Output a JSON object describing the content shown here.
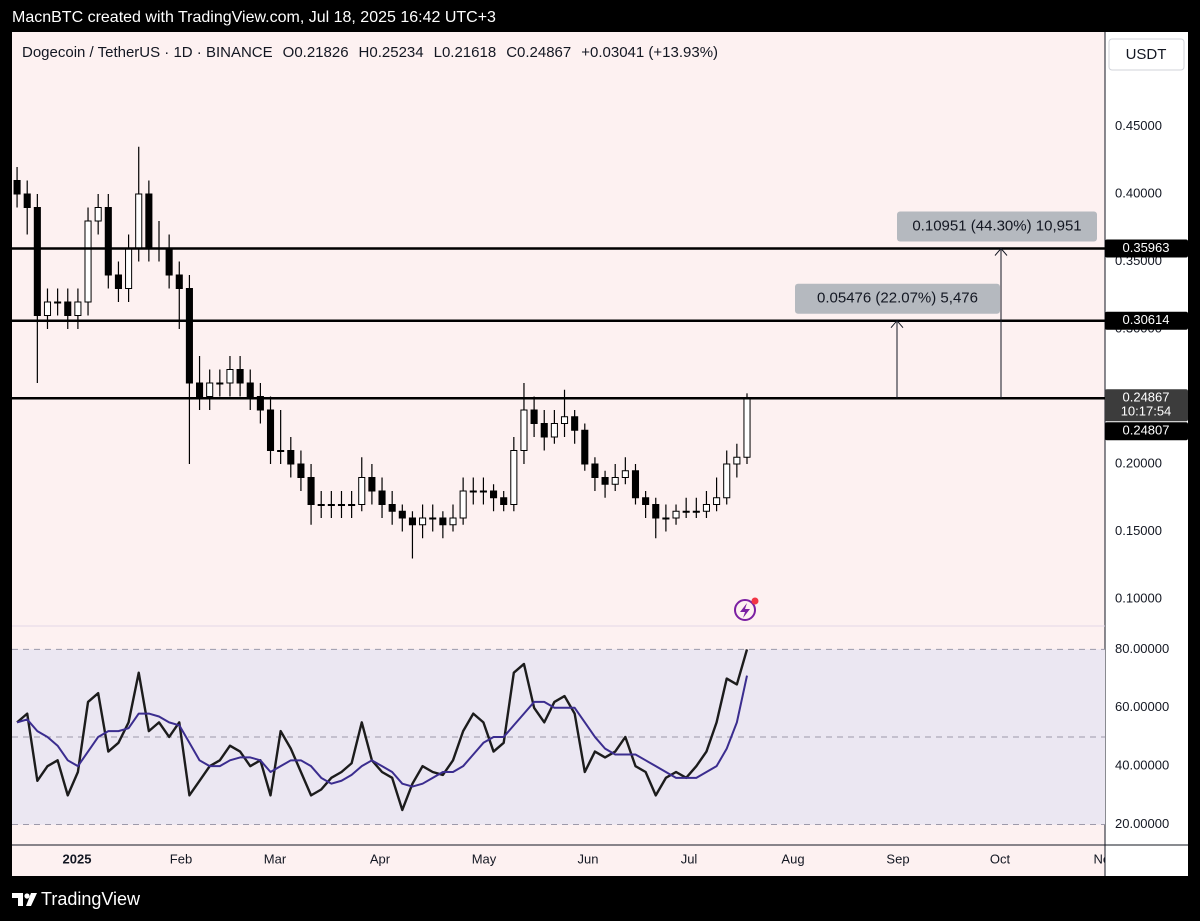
{
  "header": {
    "credit": "MacnBTC created with TradingView.com, Jul 18, 2025 16:42 UTC+3"
  },
  "chart_data": [
    {
      "type": "candlestick",
      "title": "Dogecoin / TetherUS · 1D · BINANCE",
      "legend_values": [
        "O0.21826",
        "H0.25234",
        "L0.21618",
        "C0.24867",
        "+0.03041 (+13.93%)"
      ],
      "currency": "USDT",
      "x_axis_labels": [
        "2025",
        "Feb",
        "Mar",
        "Apr",
        "May",
        "Jun",
        "Jul",
        "Aug",
        "Sep",
        "Oct",
        "Nov"
      ],
      "up_color": "#ffffff",
      "down_color": "#000000",
      "open": [
        0.41,
        0.4,
        0.39,
        0.31,
        0.32,
        0.32,
        0.31,
        0.32,
        0.38,
        0.39,
        0.34,
        0.33,
        0.36,
        0.4,
        0.36,
        0.36,
        0.34,
        0.33,
        0.26,
        0.25,
        0.26,
        0.26,
        0.27,
        0.26,
        0.25,
        0.24,
        0.21,
        0.21,
        0.2,
        0.19,
        0.17,
        0.17,
        0.17,
        0.17,
        0.17,
        0.19,
        0.18,
        0.17,
        0.165,
        0.16,
        0.155,
        0.16,
        0.16,
        0.155,
        0.16,
        0.18,
        0.18,
        0.18,
        0.175,
        0.17,
        0.21,
        0.24,
        0.23,
        0.22,
        0.23,
        0.235,
        0.225,
        0.2,
        0.19,
        0.185,
        0.19,
        0.195,
        0.175,
        0.17,
        0.16,
        0.16,
        0.165,
        0.165,
        0.165,
        0.17,
        0.175,
        0.2,
        0.205
      ],
      "high": [
        0.42,
        0.41,
        0.4,
        0.33,
        0.33,
        0.33,
        0.33,
        0.39,
        0.4,
        0.4,
        0.35,
        0.37,
        0.435,
        0.41,
        0.38,
        0.37,
        0.35,
        0.34,
        0.28,
        0.27,
        0.27,
        0.28,
        0.28,
        0.27,
        0.26,
        0.25,
        0.24,
        0.22,
        0.21,
        0.2,
        0.18,
        0.18,
        0.18,
        0.18,
        0.205,
        0.2,
        0.19,
        0.18,
        0.17,
        0.165,
        0.17,
        0.17,
        0.165,
        0.17,
        0.19,
        0.19,
        0.19,
        0.185,
        0.18,
        0.22,
        0.26,
        0.25,
        0.24,
        0.24,
        0.255,
        0.24,
        0.23,
        0.205,
        0.195,
        0.2,
        0.205,
        0.2,
        0.18,
        0.175,
        0.17,
        0.17,
        0.175,
        0.175,
        0.18,
        0.19,
        0.21,
        0.215,
        0.25234
      ],
      "low": [
        0.39,
        0.37,
        0.26,
        0.3,
        0.31,
        0.3,
        0.3,
        0.31,
        0.37,
        0.33,
        0.32,
        0.32,
        0.35,
        0.35,
        0.35,
        0.33,
        0.3,
        0.2,
        0.24,
        0.24,
        0.25,
        0.25,
        0.25,
        0.24,
        0.23,
        0.2,
        0.2,
        0.19,
        0.18,
        0.155,
        0.16,
        0.16,
        0.16,
        0.16,
        0.165,
        0.17,
        0.16,
        0.155,
        0.15,
        0.13,
        0.145,
        0.15,
        0.145,
        0.15,
        0.155,
        0.17,
        0.17,
        0.165,
        0.165,
        0.165,
        0.2,
        0.22,
        0.21,
        0.215,
        0.22,
        0.215,
        0.195,
        0.18,
        0.175,
        0.18,
        0.185,
        0.17,
        0.16,
        0.145,
        0.15,
        0.155,
        0.16,
        0.16,
        0.16,
        0.165,
        0.17,
        0.19,
        0.2
      ],
      "close": [
        0.4,
        0.39,
        0.31,
        0.32,
        0.32,
        0.31,
        0.32,
        0.38,
        0.39,
        0.34,
        0.33,
        0.36,
        0.4,
        0.36,
        0.36,
        0.34,
        0.33,
        0.26,
        0.25,
        0.26,
        0.26,
        0.27,
        0.26,
        0.25,
        0.24,
        0.21,
        0.21,
        0.2,
        0.19,
        0.17,
        0.17,
        0.17,
        0.17,
        0.17,
        0.19,
        0.18,
        0.17,
        0.165,
        0.16,
        0.155,
        0.16,
        0.16,
        0.155,
        0.16,
        0.18,
        0.18,
        0.18,
        0.175,
        0.17,
        0.21,
        0.24,
        0.23,
        0.22,
        0.23,
        0.235,
        0.225,
        0.2,
        0.19,
        0.185,
        0.19,
        0.195,
        0.175,
        0.17,
        0.16,
        0.16,
        0.165,
        0.165,
        0.165,
        0.17,
        0.175,
        0.2,
        0.205,
        0.24867
      ],
      "ylim": [
        0.08,
        0.52
      ],
      "yticks": [
        {
          "value": 0.1,
          "label": "0.10000"
        },
        {
          "value": 0.15,
          "label": "0.15000"
        },
        {
          "value": 0.2,
          "label": "0.20000"
        },
        {
          "value": 0.3,
          "label": "0.30000"
        },
        {
          "value": 0.35,
          "label": "0.35000"
        },
        {
          "value": 0.4,
          "label": "0.40000"
        },
        {
          "value": 0.45,
          "label": "0.45000"
        }
      ],
      "grid": false,
      "levels": [
        0.35963,
        0.30614,
        0.24867
      ],
      "countdown": "10:17:54",
      "last_price_ref": 0.24807,
      "measurements": [
        "0.10951 (44.30%) 10,951",
        "0.05476 (22.07%) 5,476"
      ]
    },
    {
      "type": "line",
      "series": [
        {
          "color": "#1c1c1c",
          "values": [
            55,
            58,
            35,
            40,
            42,
            30,
            38,
            62,
            65,
            45,
            48,
            55,
            72,
            52,
            55,
            50,
            55,
            30,
            35,
            40,
            42,
            47,
            45,
            40,
            42,
            30,
            52,
            46,
            38,
            30,
            32,
            36,
            38,
            41,
            55,
            42,
            38,
            36,
            25,
            34,
            40,
            38,
            37,
            42,
            52,
            58,
            55,
            45,
            48,
            72,
            75,
            60,
            55,
            62,
            64,
            58,
            38,
            45,
            43,
            45,
            50,
            40,
            38,
            30,
            36,
            38,
            36,
            40,
            45,
            55,
            70,
            68,
            80
          ]
        },
        {
          "color": "#3b2d8f",
          "values": [
            55,
            56,
            52,
            50,
            47,
            42,
            40,
            45,
            50,
            52,
            52,
            53,
            58,
            58,
            57,
            55,
            54,
            48,
            42,
            40,
            40,
            42,
            43,
            43,
            42,
            38,
            40,
            42,
            42,
            40,
            36,
            34,
            35,
            37,
            40,
            42,
            40,
            38,
            34,
            33,
            34,
            36,
            38,
            38,
            40,
            44,
            48,
            50,
            50,
            54,
            58,
            62,
            62,
            60,
            60,
            60,
            55,
            50,
            46,
            44,
            44,
            44,
            42,
            40,
            38,
            36,
            36,
            36,
            38,
            40,
            46,
            55,
            71
          ]
        }
      ],
      "ylim": [
        13,
        88
      ],
      "yticks": [
        {
          "value": 20,
          "label": "20.00000"
        },
        {
          "value": 40,
          "label": "40.00000"
        },
        {
          "value": 60,
          "label": "60.00000"
        },
        {
          "value": 80,
          "label": "80.00000"
        }
      ],
      "bands": [
        20,
        50,
        80
      ],
      "band_fill": "#ebe7f2"
    }
  ],
  "footer": {
    "brand": "TradingView"
  }
}
